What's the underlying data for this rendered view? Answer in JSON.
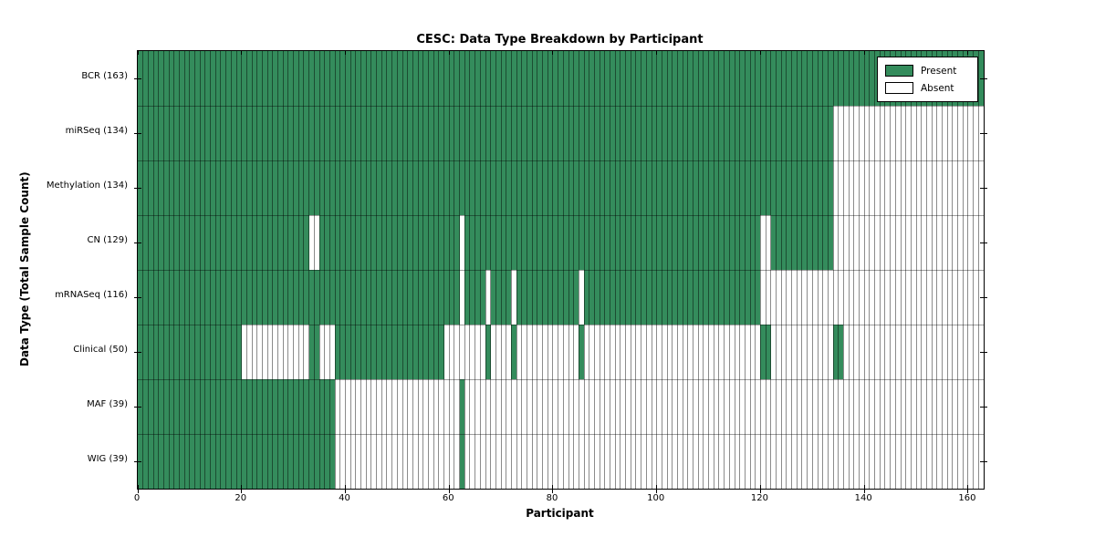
{
  "chart_data": {
    "type": "heatmap",
    "title": "CESC: Data Type Breakdown by Participant",
    "xlabel": "Participant",
    "ylabel": "Data Type (Total Sample Count)",
    "xlim": [
      0,
      163
    ],
    "n_participants": 163,
    "x_ticks": [
      0,
      20,
      40,
      60,
      80,
      100,
      120,
      140,
      160
    ],
    "grid": "per-cell vertical dividers and row boundary lines",
    "legend_position": "upper right",
    "legend": [
      {
        "label": "Present",
        "color": "#348C5C"
      },
      {
        "label": "Absent",
        "color": "#ffffff"
      }
    ],
    "colors": {
      "present": "#348C5C",
      "absent": "#ffffff",
      "grid": "rgba(0,0,0,0.45)",
      "row_boundary": "rgba(0,0,0,0.38)",
      "spine": "#000000"
    },
    "rows": [
      {
        "name": "BCR",
        "count": 163,
        "label": "BCR (163)",
        "present_ranges": [
          [
            0,
            163
          ]
        ]
      },
      {
        "name": "miRSeq",
        "count": 134,
        "label": "miRSeq (134)",
        "present_ranges": [
          [
            0,
            134
          ]
        ]
      },
      {
        "name": "Methylation",
        "count": 134,
        "label": "Methylation (134)",
        "present_ranges": [
          [
            0,
            134
          ]
        ]
      },
      {
        "name": "CN",
        "count": 129,
        "label": "CN (129)",
        "present_ranges": [
          [
            0,
            33
          ],
          [
            35,
            62
          ],
          [
            63,
            120
          ],
          [
            122,
            134
          ]
        ]
      },
      {
        "name": "mRNASeq",
        "count": 116,
        "label": "mRNASeq (116)",
        "present_ranges": [
          [
            0,
            62
          ],
          [
            63,
            67
          ],
          [
            68,
            72
          ],
          [
            73,
            85
          ],
          [
            86,
            120
          ]
        ]
      },
      {
        "name": "Clinical",
        "count": 50,
        "label": "Clinical (50)",
        "present_ranges": [
          [
            0,
            20
          ],
          [
            33,
            35
          ],
          [
            38,
            59
          ],
          [
            67,
            68
          ],
          [
            72,
            73
          ],
          [
            85,
            86
          ],
          [
            120,
            122
          ],
          [
            134,
            136
          ]
        ]
      },
      {
        "name": "MAF",
        "count": 39,
        "label": "MAF (39)",
        "present_ranges": [
          [
            0,
            38
          ],
          [
            62,
            63
          ]
        ]
      },
      {
        "name": "WIG",
        "count": 39,
        "label": "WIG (39)",
        "present_ranges": [
          [
            0,
            38
          ],
          [
            62,
            63
          ]
        ]
      }
    ]
  }
}
